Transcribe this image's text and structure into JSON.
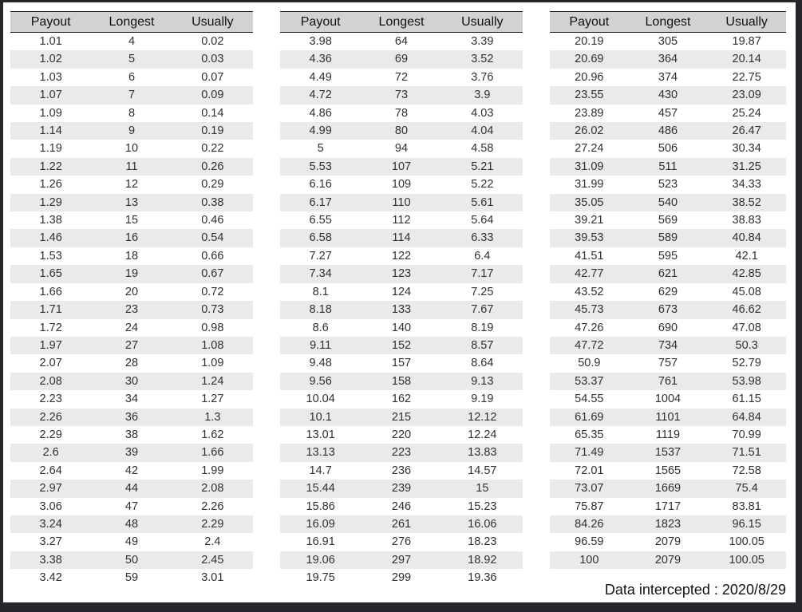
{
  "columns": [
    "Payout",
    "Longest",
    "Usually"
  ],
  "tables": [
    {
      "rows": [
        [
          "1.01",
          "4",
          "0.02"
        ],
        [
          "1.02",
          "5",
          "0.03"
        ],
        [
          "1.03",
          "6",
          "0.07"
        ],
        [
          "1.07",
          "7",
          "0.09"
        ],
        [
          "1.09",
          "8",
          "0.14"
        ],
        [
          "1.14",
          "9",
          "0.19"
        ],
        [
          "1.19",
          "10",
          "0.22"
        ],
        [
          "1.22",
          "11",
          "0.26"
        ],
        [
          "1.26",
          "12",
          "0.29"
        ],
        [
          "1.29",
          "13",
          "0.38"
        ],
        [
          "1.38",
          "15",
          "0.46"
        ],
        [
          "1.46",
          "16",
          "0.54"
        ],
        [
          "1.53",
          "18",
          "0.66"
        ],
        [
          "1.65",
          "19",
          "0.67"
        ],
        [
          "1.66",
          "20",
          "0.72"
        ],
        [
          "1.71",
          "23",
          "0.73"
        ],
        [
          "1.72",
          "24",
          "0.98"
        ],
        [
          "1.97",
          "27",
          "1.08"
        ],
        [
          "2.07",
          "28",
          "1.09"
        ],
        [
          "2.08",
          "30",
          "1.24"
        ],
        [
          "2.23",
          "34",
          "1.27"
        ],
        [
          "2.26",
          "36",
          "1.3"
        ],
        [
          "2.29",
          "38",
          "1.62"
        ],
        [
          "2.6",
          "39",
          "1.66"
        ],
        [
          "2.64",
          "42",
          "1.99"
        ],
        [
          "2.97",
          "44",
          "2.08"
        ],
        [
          "3.06",
          "47",
          "2.26"
        ],
        [
          "3.24",
          "48",
          "2.29"
        ],
        [
          "3.27",
          "49",
          "2.4"
        ],
        [
          "3.38",
          "50",
          "2.45"
        ],
        [
          "3.42",
          "59",
          "3.01"
        ]
      ]
    },
    {
      "rows": [
        [
          "3.98",
          "64",
          "3.39"
        ],
        [
          "4.36",
          "69",
          "3.52"
        ],
        [
          "4.49",
          "72",
          "3.76"
        ],
        [
          "4.72",
          "73",
          "3.9"
        ],
        [
          "4.86",
          "78",
          "4.03"
        ],
        [
          "4.99",
          "80",
          "4.04"
        ],
        [
          "5",
          "94",
          "4.58"
        ],
        [
          "5.53",
          "107",
          "5.21"
        ],
        [
          "6.16",
          "109",
          "5.22"
        ],
        [
          "6.17",
          "110",
          "5.61"
        ],
        [
          "6.55",
          "112",
          "5.64"
        ],
        [
          "6.58",
          "114",
          "6.33"
        ],
        [
          "7.27",
          "122",
          "6.4"
        ],
        [
          "7.34",
          "123",
          "7.17"
        ],
        [
          "8.1",
          "124",
          "7.25"
        ],
        [
          "8.18",
          "133",
          "7.67"
        ],
        [
          "8.6",
          "140",
          "8.19"
        ],
        [
          "9.11",
          "152",
          "8.57"
        ],
        [
          "9.48",
          "157",
          "8.64"
        ],
        [
          "9.56",
          "158",
          "9.13"
        ],
        [
          "10.04",
          "162",
          "9.19"
        ],
        [
          "10.1",
          "215",
          "12.12"
        ],
        [
          "13.01",
          "220",
          "12.24"
        ],
        [
          "13.13",
          "223",
          "13.83"
        ],
        [
          "14.7",
          "236",
          "14.57"
        ],
        [
          "15.44",
          "239",
          "15"
        ],
        [
          "15.86",
          "246",
          "15.23"
        ],
        [
          "16.09",
          "261",
          "16.06"
        ],
        [
          "16.91",
          "276",
          "18.23"
        ],
        [
          "19.06",
          "297",
          "18.92"
        ],
        [
          "19.75",
          "299",
          "19.36"
        ]
      ]
    },
    {
      "rows": [
        [
          "20.19",
          "305",
          "19.87"
        ],
        [
          "20.69",
          "364",
          "20.14"
        ],
        [
          "20.96",
          "374",
          "22.75"
        ],
        [
          "23.55",
          "430",
          "23.09"
        ],
        [
          "23.89",
          "457",
          "25.24"
        ],
        [
          "26.02",
          "486",
          "26.47"
        ],
        [
          "27.24",
          "506",
          "30.34"
        ],
        [
          "31.09",
          "511",
          "31.25"
        ],
        [
          "31.99",
          "523",
          "34.33"
        ],
        [
          "35.05",
          "540",
          "38.52"
        ],
        [
          "39.21",
          "569",
          "38.83"
        ],
        [
          "39.53",
          "589",
          "40.84"
        ],
        [
          "41.51",
          "595",
          "42.1"
        ],
        [
          "42.77",
          "621",
          "42.85"
        ],
        [
          "43.52",
          "629",
          "45.08"
        ],
        [
          "45.73",
          "673",
          "46.62"
        ],
        [
          "47.26",
          "690",
          "47.08"
        ],
        [
          "47.72",
          "734",
          "50.3"
        ],
        [
          "50.9",
          "757",
          "52.79"
        ],
        [
          "53.37",
          "761",
          "53.98"
        ],
        [
          "54.55",
          "1004",
          "61.15"
        ],
        [
          "61.69",
          "1101",
          "64.84"
        ],
        [
          "65.35",
          "1119",
          "70.99"
        ],
        [
          "71.49",
          "1537",
          "71.51"
        ],
        [
          "72.01",
          "1565",
          "72.58"
        ],
        [
          "73.07",
          "1669",
          "75.4"
        ],
        [
          "75.87",
          "1717",
          "83.81"
        ],
        [
          "84.26",
          "1823",
          "96.15"
        ],
        [
          "96.59",
          "2079",
          "100.05"
        ],
        [
          "100",
          "2079",
          "100.05"
        ]
      ]
    }
  ],
  "footer": {
    "label": "Data intercepted : 2020/8/29"
  },
  "colors": {
    "frame": "#26272b",
    "header_bg": "#d2d2d2",
    "stripe": "#eaeaea"
  }
}
